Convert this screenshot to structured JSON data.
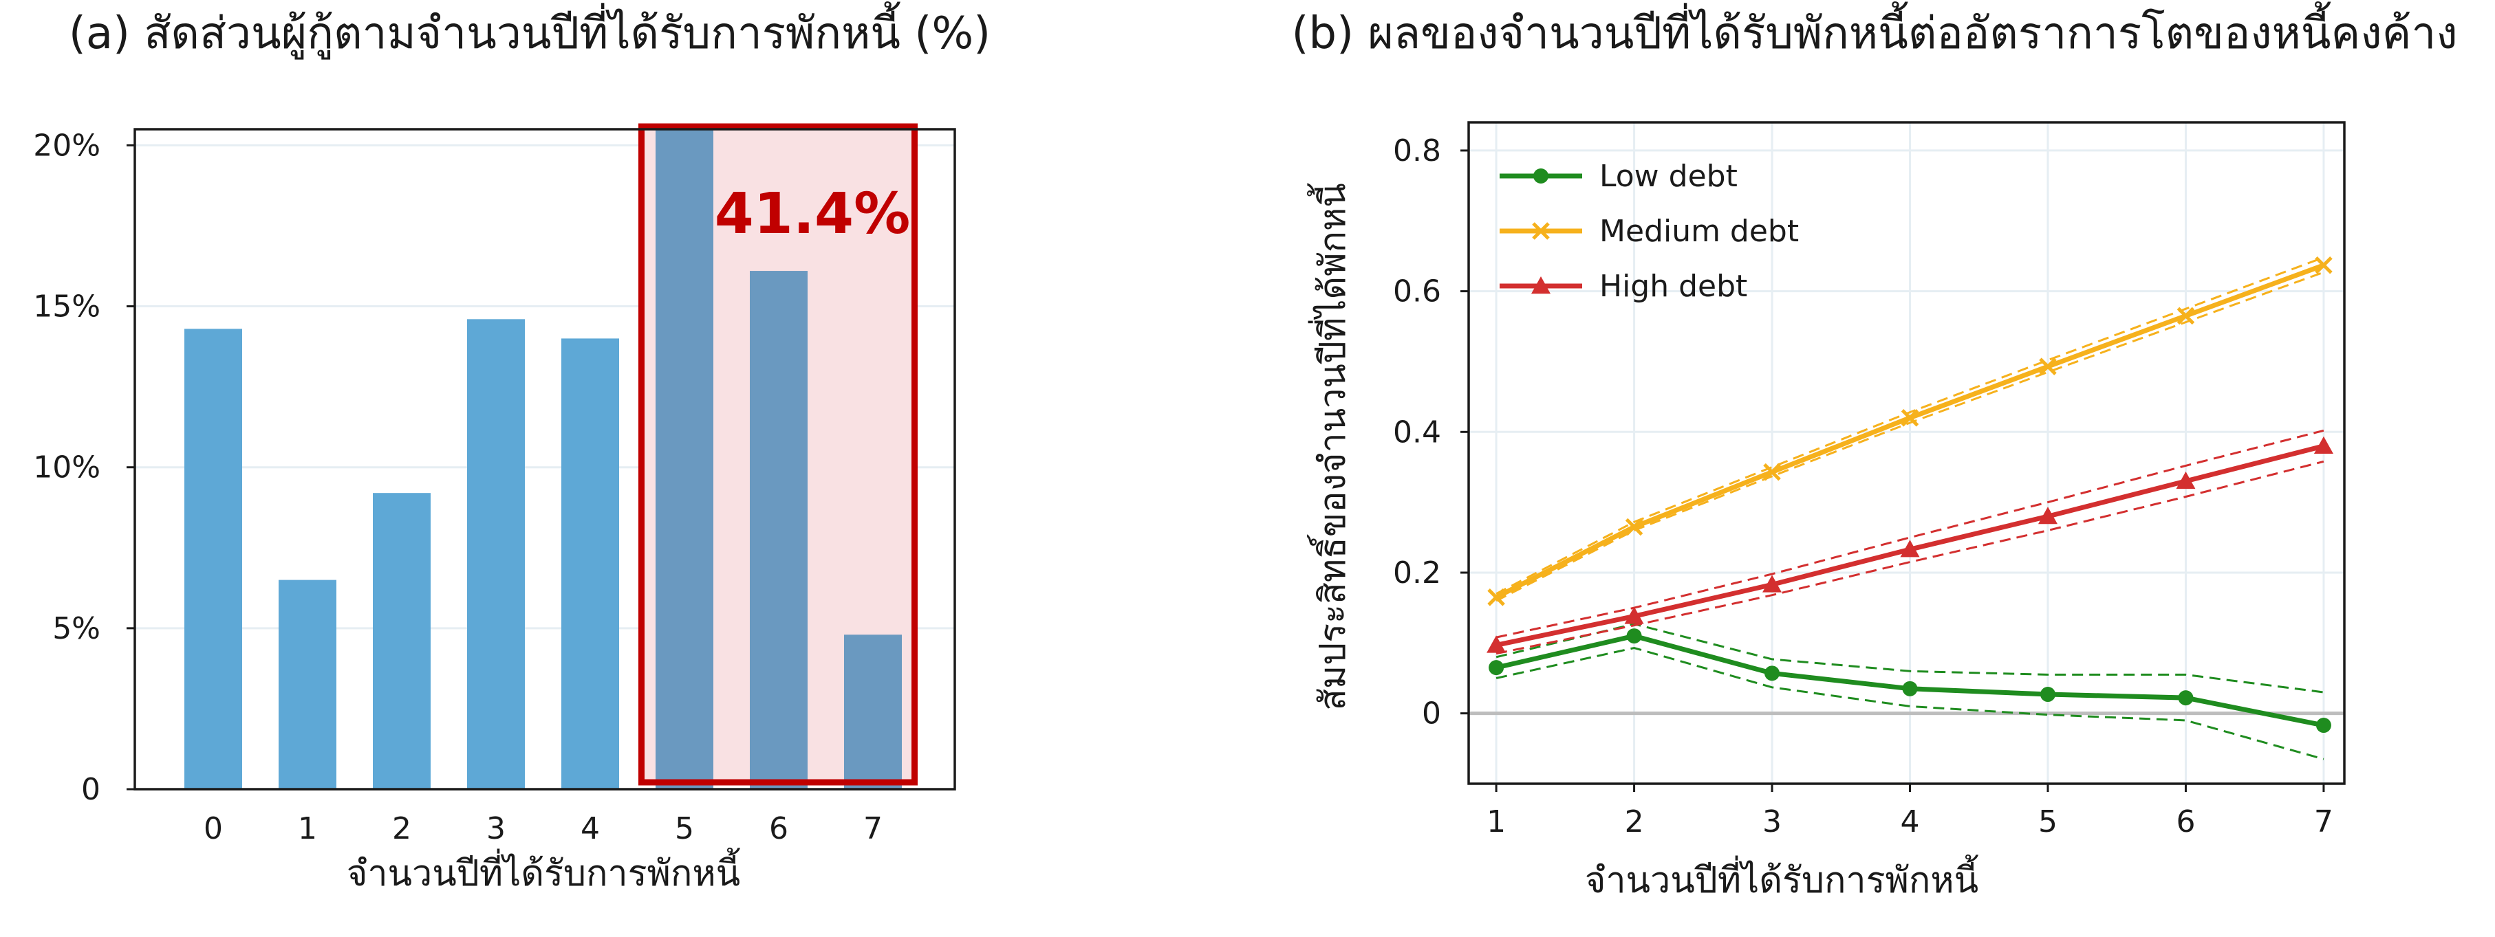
{
  "chart_data": [
    {
      "type": "bar",
      "title": "(a) สัดส่วนผู้กู้ตามจำนวนปีที่ได้รับการพักหนี้ (%)",
      "xlabel": "จำนวนปีที่ได้รับการพักหนี้",
      "ylabel": "",
      "categories": [
        "0",
        "1",
        "2",
        "3",
        "4",
        "5",
        "6",
        "7"
      ],
      "values": [
        14.3,
        6.5,
        9.2,
        14.6,
        14.0,
        20.5,
        16.1,
        4.8
      ],
      "ylim": [
        0,
        20.5
      ],
      "yticks": [
        0,
        5,
        10,
        15,
        20
      ],
      "ytick_labels": [
        "0",
        "5%",
        "10%",
        "15%",
        "20%"
      ],
      "grid": true,
      "highlight": {
        "categories": [
          "5",
          "6",
          "7"
        ],
        "label": "41.4%",
        "color": "#c00000"
      },
      "colors": {
        "bar": "#5ea8d6",
        "bar_highlighted": "#6a99c0",
        "highlight_fill": "#f9e1e3"
      }
    },
    {
      "type": "line",
      "title": "(b) ผลของจำนวนปีที่ได้รับพักหนี้ต่ออัตราการโตของหนี้คงค้าง",
      "xlabel": "จำนวนปีที่ได้รับการพักหนี้",
      "ylabel": "สัมประสิทธิ์ของจำนวนปีที่ได้พักหนี้",
      "x": [
        1,
        2,
        3,
        4,
        5,
        6,
        7
      ],
      "xlim": [
        0.8,
        7.15
      ],
      "ylim": [
        -0.1,
        0.84
      ],
      "yticks": [
        0,
        0.2,
        0.4,
        0.6,
        0.8
      ],
      "ytick_labels": [
        "0",
        "0.2",
        "0.4",
        "0.6",
        "0.8"
      ],
      "grid": true,
      "legend_position": "top-left",
      "series": [
        {
          "name": "Low debt",
          "color": "#1f8c1f",
          "marker": "circle",
          "values": [
            0.065,
            0.11,
            0.057,
            0.035,
            0.027,
            0.022,
            -0.017
          ],
          "ci_lower": [
            0.05,
            0.093,
            0.037,
            0.01,
            -0.002,
            -0.01,
            -0.065
          ],
          "ci_upper": [
            0.08,
            0.127,
            0.077,
            0.06,
            0.055,
            0.055,
            0.03
          ]
        },
        {
          "name": "Medium debt",
          "color": "#f6b11c",
          "marker": "x",
          "values": [
            0.165,
            0.265,
            0.343,
            0.42,
            0.493,
            0.565,
            0.637
          ],
          "ci_lower": [
            0.16,
            0.26,
            0.337,
            0.413,
            0.485,
            0.556,
            0.627
          ],
          "ci_upper": [
            0.17,
            0.272,
            0.35,
            0.428,
            0.502,
            0.575,
            0.648
          ]
        },
        {
          "name": "High debt",
          "color": "#d32f2f",
          "marker": "triangle",
          "values": [
            0.097,
            0.138,
            0.183,
            0.233,
            0.28,
            0.33,
            0.38
          ],
          "ci_lower": [
            0.085,
            0.125,
            0.168,
            0.215,
            0.26,
            0.308,
            0.358
          ],
          "ci_upper": [
            0.108,
            0.15,
            0.198,
            0.25,
            0.3,
            0.352,
            0.402
          ]
        }
      ]
    }
  ]
}
